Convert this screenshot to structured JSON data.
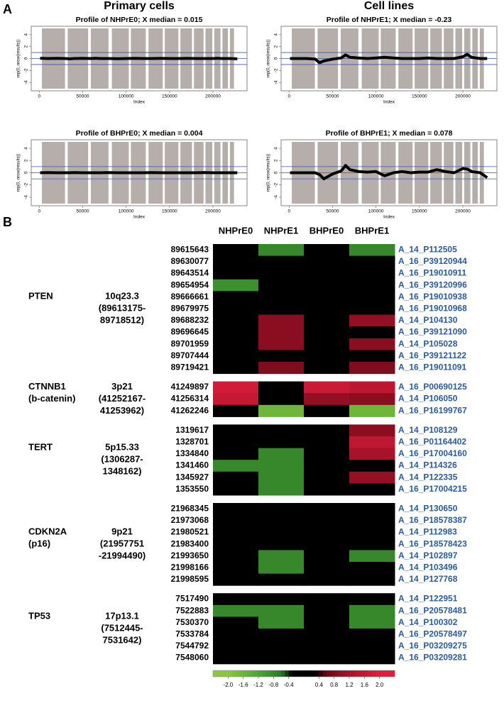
{
  "panel_a": {
    "label": "A",
    "column_titles": [
      "Primary cells",
      "Cell lines"
    ]
  },
  "panel_b": {
    "label": "B"
  },
  "chart_data": [
    {
      "type": "line",
      "title": "Profile of NHPrE0; X median = 0.015",
      "xlabel": "Index",
      "ylabel": "rep(0, nrow(results))",
      "xlim": [
        -9200,
        239200
      ],
      "ylim": [
        -5.4,
        5.4
      ],
      "xticks": [
        0,
        50000,
        100000,
        150000,
        200000
      ],
      "yticks": [
        -4,
        -2,
        0,
        2,
        4
      ],
      "hlines": [
        -1,
        0,
        1
      ],
      "hline_color": "#3a55b0",
      "band_color": "#b5aeaa",
      "bands": [
        [
          3100,
          29700
        ],
        [
          32800,
          56300
        ],
        [
          59400,
          79700
        ],
        [
          83600,
          103100
        ],
        [
          105500,
          122700
        ],
        [
          125800,
          142200
        ],
        [
          144500,
          160200
        ],
        [
          162500,
          175800
        ],
        [
          178100,
          189100
        ],
        [
          191400,
          199200
        ],
        [
          201600,
          208600
        ],
        [
          210900,
          217200
        ],
        [
          219500,
          224200
        ]
      ],
      "x": [
        1000,
        10000,
        20000,
        30000,
        35000,
        40000,
        50000,
        60000,
        65000,
        70000,
        80000,
        90000,
        100000,
        110000,
        120000,
        130000,
        140000,
        150000,
        160000,
        170000,
        180000,
        190000,
        200000,
        205000,
        210000,
        220000,
        228000
      ],
      "values": [
        0.05,
        0,
        0.02,
        0,
        -0.05,
        0,
        0.02,
        0,
        0.05,
        0,
        0,
        -0.02,
        0,
        0.02,
        0,
        0,
        0.02,
        0,
        0,
        0.02,
        0,
        0,
        0,
        0.05,
        0,
        0,
        -0.05
      ],
      "color": "#000000"
    },
    {
      "type": "line",
      "title": "Profile of NHPrE1; X median = -0.23",
      "xlabel": "Index",
      "ylabel": "rep(0, nrow(results))",
      "xlim": [
        -9200,
        239200
      ],
      "ylim": [
        -5.4,
        5.4
      ],
      "xticks": [
        0,
        50000,
        100000,
        150000,
        200000
      ],
      "yticks": [
        -4,
        -2,
        0,
        2,
        4
      ],
      "hlines": [
        -1,
        0,
        1
      ],
      "hline_color": "#3a55b0",
      "band_color": "#b5aeaa",
      "bands": [
        [
          3100,
          29700
        ],
        [
          32800,
          56300
        ],
        [
          59400,
          79700
        ],
        [
          83600,
          103100
        ],
        [
          105500,
          122700
        ],
        [
          125800,
          142200
        ],
        [
          144500,
          160200
        ],
        [
          162500,
          175800
        ],
        [
          178100,
          189100
        ],
        [
          191400,
          199200
        ],
        [
          201600,
          208600
        ],
        [
          210900,
          217200
        ],
        [
          219500,
          224200
        ]
      ],
      "x": [
        1000,
        10000,
        20000,
        30000,
        35000,
        40000,
        50000,
        60000,
        65000,
        70000,
        80000,
        90000,
        100000,
        110000,
        120000,
        130000,
        140000,
        150000,
        160000,
        170000,
        180000,
        190000,
        200000,
        205000,
        210000,
        220000,
        228000
      ],
      "values": [
        0,
        0,
        0,
        -0.1,
        -0.7,
        -0.4,
        -0.1,
        0.1,
        0.6,
        0.2,
        0.1,
        0,
        0.1,
        0.2,
        0.1,
        0,
        0,
        0,
        0.1,
        0,
        0,
        0,
        0.3,
        0.7,
        0.2,
        0,
        0
      ],
      "color": "#000000"
    },
    {
      "type": "line",
      "title": "Profile of BHPrE0; X median = 0.004",
      "xlabel": "Index",
      "ylabel": "rep(0, nrow(results))",
      "xlim": [
        -9200,
        239200
      ],
      "ylim": [
        -5.4,
        5.4
      ],
      "xticks": [
        0,
        50000,
        100000,
        150000,
        200000
      ],
      "yticks": [
        -4,
        -2,
        0,
        2,
        4
      ],
      "hlines": [
        -1,
        0,
        1
      ],
      "hline_color": "#3a55b0",
      "band_color": "#b5aeaa",
      "bands": [
        [
          3100,
          29700
        ],
        [
          32800,
          56300
        ],
        [
          59400,
          79700
        ],
        [
          83600,
          103100
        ],
        [
          105500,
          122700
        ],
        [
          125800,
          142200
        ],
        [
          144500,
          160200
        ],
        [
          162500,
          175800
        ],
        [
          178100,
          189100
        ],
        [
          191400,
          199200
        ],
        [
          201600,
          208600
        ],
        [
          210900,
          217200
        ],
        [
          219500,
          224200
        ]
      ],
      "x": [
        1000,
        10000,
        20000,
        30000,
        35000,
        40000,
        50000,
        60000,
        65000,
        70000,
        80000,
        90000,
        100000,
        110000,
        120000,
        130000,
        140000,
        150000,
        160000,
        170000,
        180000,
        190000,
        200000,
        205000,
        210000,
        220000,
        228000
      ],
      "values": [
        0,
        0.02,
        0,
        0,
        0,
        0.02,
        0,
        0,
        0,
        0,
        0.02,
        0,
        0,
        0,
        0,
        0.02,
        0,
        0,
        0,
        0,
        0,
        0.02,
        0,
        0,
        0,
        0,
        0
      ],
      "color": "#000000"
    },
    {
      "type": "line",
      "title": "Profile of BHPrE1; X median = 0.078",
      "xlabel": "Index",
      "ylabel": "rep(0, nrow(results))",
      "xlim": [
        -9200,
        239200
      ],
      "ylim": [
        -5.4,
        5.4
      ],
      "xticks": [
        0,
        50000,
        100000,
        150000,
        200000
      ],
      "yticks": [
        -4,
        -2,
        0,
        2,
        4
      ],
      "hlines": [
        -1,
        0,
        1
      ],
      "hline_color": "#3a55b0",
      "band_color": "#b5aeaa",
      "bands": [
        [
          3100,
          29700
        ],
        [
          32800,
          56300
        ],
        [
          59400,
          79700
        ],
        [
          83600,
          103100
        ],
        [
          105500,
          122700
        ],
        [
          125800,
          142200
        ],
        [
          144500,
          160200
        ],
        [
          162500,
          175800
        ],
        [
          178100,
          189100
        ],
        [
          191400,
          199200
        ],
        [
          201600,
          208600
        ],
        [
          210900,
          217200
        ],
        [
          219500,
          224200
        ]
      ],
      "x": [
        1000,
        10000,
        20000,
        30000,
        35000,
        40000,
        50000,
        60000,
        65000,
        70000,
        80000,
        90000,
        100000,
        110000,
        120000,
        130000,
        140000,
        150000,
        160000,
        170000,
        180000,
        190000,
        200000,
        205000,
        210000,
        220000,
        228000
      ],
      "values": [
        0,
        0,
        0,
        0,
        -0.3,
        -1,
        -0.2,
        0.3,
        1.2,
        0.5,
        0.2,
        0.1,
        0.2,
        -0.5,
        0,
        0.2,
        0,
        0.1,
        0.1,
        0.5,
        0.2,
        0,
        0.7,
        0.6,
        0.2,
        0,
        -0.8
      ],
      "color": "#000000"
    },
    {
      "type": "heatmap",
      "columns": [
        "NHPrE0",
        "NHPrE1",
        "BHPrE0",
        "BHPrE1"
      ],
      "probe_color": "#2b5b9c",
      "colorscale": [
        [
          -2,
          "#8dc63f"
        ],
        [
          -1.2,
          "#4ea535"
        ],
        [
          -0.6,
          "#2c7a26"
        ],
        [
          -0.3,
          "#000000"
        ],
        [
          0.3,
          "#000000"
        ],
        [
          0.6,
          "#6b0a14"
        ],
        [
          1.2,
          "#a8122a"
        ],
        [
          2,
          "#e01e3c"
        ]
      ],
      "colorbar": {
        "lim": [
          -2.4,
          2.4
        ],
        "ticks": [
          {
            "value": -2,
            "label": "-2.0"
          },
          {
            "value": -1.6,
            "label": "-1.6"
          },
          {
            "value": -1.2,
            "label": "-1.2"
          },
          {
            "value": -0.8,
            "label": "-0.8"
          },
          {
            "value": -0.4,
            "label": "-0.4"
          },
          {
            "value": 0.4,
            "label": "0.4"
          },
          {
            "value": 0.8,
            "label": "0.8"
          },
          {
            "value": 1.2,
            "label": "1.2"
          },
          {
            "value": 1.6,
            "label": "1.6"
          },
          {
            "value": 2,
            "label": "2.0"
          }
        ]
      },
      "groups": [
        {
          "gene": [
            "PTEN"
          ],
          "locus": [
            "10q23.3",
            "(89613175-",
            "89718512)"
          ],
          "positions": [
            89615643,
            89630077,
            89643514,
            89654954,
            89666661,
            89679975,
            89688232,
            89696645,
            89701959,
            89707444,
            89719421
          ],
          "probes": [
            "A_14_P112505",
            "A_16_P39120944",
            "A_16_P19010911",
            "A_16_P39120996",
            "A_16_P19010938",
            "A_16_P19010968",
            "A_14_P104130",
            "A_16_P39121090",
            "A_14_P105028",
            "A_16_P39121122",
            "A_16_P19011091"
          ],
          "values": [
            [
              0,
              -0.8,
              0,
              -0.8
            ],
            [
              0,
              0,
              0,
              0
            ],
            [
              0,
              0,
              0,
              0
            ],
            [
              -0.9,
              0,
              0,
              0
            ],
            [
              0,
              0,
              0,
              0
            ],
            [
              0,
              0,
              0,
              0
            ],
            [
              0,
              0.9,
              0,
              1.0
            ],
            [
              0,
              0.9,
              0,
              0
            ],
            [
              0,
              0.9,
              0,
              0.9
            ],
            [
              0,
              0,
              0,
              0
            ],
            [
              0,
              0.8,
              0,
              0.8
            ]
          ]
        },
        {
          "gene": [
            "CTNNB1",
            "(b-catenin)"
          ],
          "locus": [
            "3p21",
            "(41252167-",
            "41253962)"
          ],
          "positions": [
            41249897,
            41256314,
            41262246
          ],
          "probes": [
            "A_16_P00690125",
            "A_14_P106050",
            "A_16_P16199767"
          ],
          "values": [
            [
              1.8,
              0,
              1.7,
              1.5
            ],
            [
              1.6,
              0,
              1.0,
              0.9
            ],
            [
              0,
              -1.6,
              0,
              -1.6
            ]
          ]
        },
        {
          "gene": [
            "TERT"
          ],
          "locus": [
            "5p15.33",
            "(1306287-",
            "1348162)"
          ],
          "positions": [
            1319617,
            1328701,
            1334840,
            1341460,
            1345927,
            1353550
          ],
          "probes": [
            "A_14_P108129",
            "A_16_P01164402",
            "A_16_P17004160",
            "A_14_P114326",
            "A_14_P122335",
            "A_16_P17004215"
          ],
          "values": [
            [
              0,
              0,
              0,
              0.9
            ],
            [
              0,
              0,
              0,
              1.5
            ],
            [
              0,
              -0.8,
              0,
              1.2
            ],
            [
              -0.8,
              -0.8,
              0,
              0
            ],
            [
              0,
              -0.8,
              0,
              1.0
            ],
            [
              0,
              -0.8,
              0,
              0
            ]
          ]
        },
        {
          "gene": [
            "CDKN2A",
            "(p16)"
          ],
          "locus": [
            "9p21",
            "(21957751",
            "-21994490)"
          ],
          "positions": [
            21968345,
            21973068,
            21980521,
            21983400,
            21993650,
            21998166,
            21998595
          ],
          "probes": [
            "A_14_P130650",
            "A_16_P18578387",
            "A_14_P112983",
            "A_16_P18578423",
            "A_14_P102897",
            "A_14_P103496",
            "A_14_P127768"
          ],
          "values": [
            [
              0,
              0,
              0,
              0
            ],
            [
              0,
              0,
              0,
              0
            ],
            [
              0,
              0,
              0,
              0
            ],
            [
              0,
              0,
              0,
              0
            ],
            [
              0,
              -0.8,
              0,
              -0.8
            ],
            [
              0,
              -0.8,
              0,
              0
            ],
            [
              0,
              0,
              0,
              0
            ]
          ]
        },
        {
          "gene": [
            "TP53"
          ],
          "locus": [
            "17p13.1",
            "(7512445-",
            "7531642)"
          ],
          "positions": [
            7517490,
            7522883,
            7530370,
            7533784,
            7544792,
            7548060
          ],
          "probes": [
            "A_14_P122951",
            "A_16_P20578481",
            "A_14_P100302",
            "A_16_P20578497",
            "A_16_P03209275",
            "A_16_P03209281"
          ],
          "values": [
            [
              0,
              0,
              0,
              0
            ],
            [
              -0.8,
              -0.8,
              0,
              -0.8
            ],
            [
              0,
              -0.8,
              0,
              -0.8
            ],
            [
              0,
              0,
              0,
              0
            ],
            [
              0,
              0,
              0,
              0
            ],
            [
              0,
              0,
              0,
              0
            ]
          ]
        }
      ]
    }
  ]
}
